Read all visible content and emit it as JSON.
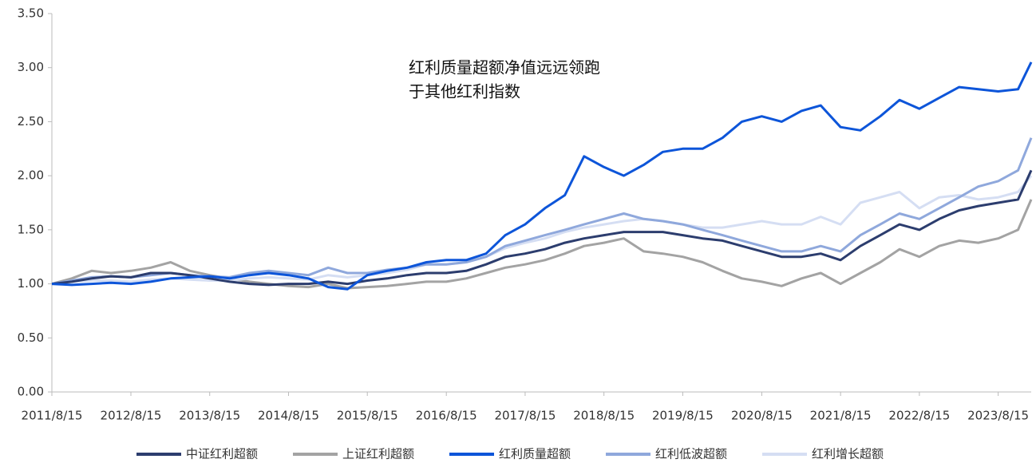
{
  "chart_data": {
    "type": "line",
    "annotation": [
      "红利质量超额净值远远领跑",
      "于其他红利指数"
    ],
    "x": [
      "2011/8/15",
      "2011/11/15",
      "2012/2/15",
      "2012/5/15",
      "2012/8/15",
      "2012/11/15",
      "2013/2/15",
      "2013/5/15",
      "2013/8/15",
      "2013/11/15",
      "2014/2/15",
      "2014/5/15",
      "2014/8/15",
      "2014/11/15",
      "2015/2/15",
      "2015/5/15",
      "2015/8/15",
      "2015/11/15",
      "2016/2/15",
      "2016/5/15",
      "2016/8/15",
      "2016/11/15",
      "2017/2/15",
      "2017/5/15",
      "2017/8/15",
      "2017/11/15",
      "2018/2/15",
      "2018/5/15",
      "2018/8/15",
      "2018/11/15",
      "2019/2/15",
      "2019/5/15",
      "2019/8/15",
      "2019/11/15",
      "2020/2/15",
      "2020/5/15",
      "2020/8/15",
      "2020/11/15",
      "2021/2/15",
      "2021/5/15",
      "2021/8/15",
      "2021/11/15",
      "2022/2/15",
      "2022/5/15",
      "2022/8/15",
      "2022/11/15",
      "2023/2/15",
      "2023/5/15",
      "2023/8/15",
      "2023/11/15",
      "2024/1/15"
    ],
    "xlim": [
      "2011/8/15",
      "2024/1/15"
    ],
    "xticks": [
      "2011/8/15",
      "2012/8/15",
      "2013/8/15",
      "2014/8/15",
      "2015/8/15",
      "2016/8/15",
      "2017/8/15",
      "2018/8/15",
      "2019/8/15",
      "2020/8/15",
      "2021/8/15",
      "2022/8/15",
      "2023/8/15"
    ],
    "ylim": [
      0,
      3.5
    ],
    "yticks": [
      {
        "value": 0,
        "label": "0.00"
      },
      {
        "value": 0.5,
        "label": "0.50"
      },
      {
        "value": 1,
        "label": "1.00"
      },
      {
        "value": 1.5,
        "label": "1.50"
      },
      {
        "value": 2,
        "label": "2.00"
      },
      {
        "value": 2.5,
        "label": "2.50"
      },
      {
        "value": 3,
        "label": "3.00"
      },
      {
        "value": 3.5,
        "label": "3.50"
      }
    ],
    "legend": "bottom",
    "series": [
      {
        "name": "中证红利超额",
        "color": "#2c3d6e",
        "values": [
          1.0,
          1.02,
          1.05,
          1.07,
          1.06,
          1.1,
          1.1,
          1.08,
          1.05,
          1.02,
          1.0,
          0.99,
          1.0,
          1.0,
          1.02,
          1.0,
          1.03,
          1.05,
          1.08,
          1.1,
          1.1,
          1.12,
          1.18,
          1.25,
          1.28,
          1.32,
          1.38,
          1.42,
          1.45,
          1.48,
          1.48,
          1.48,
          1.45,
          1.42,
          1.4,
          1.35,
          1.3,
          1.25,
          1.25,
          1.28,
          1.22,
          1.35,
          1.45,
          1.55,
          1.5,
          1.6,
          1.68,
          1.72,
          1.75,
          1.78,
          2.05
        ]
      },
      {
        "name": "上证红利超额",
        "color": "#a3a3a3",
        "values": [
          1.0,
          1.05,
          1.12,
          1.1,
          1.12,
          1.15,
          1.2,
          1.12,
          1.08,
          1.05,
          1.02,
          1.0,
          0.98,
          0.97,
          1.0,
          0.96,
          0.97,
          0.98,
          1.0,
          1.02,
          1.02,
          1.05,
          1.1,
          1.15,
          1.18,
          1.22,
          1.28,
          1.35,
          1.38,
          1.42,
          1.3,
          1.28,
          1.25,
          1.2,
          1.12,
          1.05,
          1.02,
          0.98,
          1.05,
          1.1,
          1.0,
          1.1,
          1.2,
          1.32,
          1.25,
          1.35,
          1.4,
          1.38,
          1.42,
          1.5,
          1.78
        ]
      },
      {
        "name": "红利质量超额",
        "color": "#0d55d9",
        "values": [
          1.0,
          0.99,
          1.0,
          1.01,
          1.0,
          1.02,
          1.05,
          1.06,
          1.07,
          1.05,
          1.08,
          1.1,
          1.08,
          1.05,
          0.97,
          0.95,
          1.08,
          1.12,
          1.15,
          1.2,
          1.22,
          1.22,
          1.28,
          1.45,
          1.55,
          1.7,
          1.82,
          2.18,
          2.08,
          2.0,
          2.1,
          2.22,
          2.25,
          2.25,
          2.35,
          2.5,
          2.55,
          2.5,
          2.6,
          2.65,
          2.45,
          2.42,
          2.55,
          2.7,
          2.62,
          2.72,
          2.82,
          2.8,
          2.78,
          2.8,
          3.05
        ]
      },
      {
        "name": "红利低波超额",
        "color": "#8fa8dc",
        "values": [
          1.0,
          1.03,
          1.06,
          1.07,
          1.06,
          1.08,
          1.1,
          1.08,
          1.07,
          1.06,
          1.1,
          1.12,
          1.1,
          1.08,
          1.15,
          1.1,
          1.1,
          1.13,
          1.15,
          1.18,
          1.18,
          1.2,
          1.25,
          1.35,
          1.4,
          1.45,
          1.5,
          1.55,
          1.6,
          1.65,
          1.6,
          1.58,
          1.55,
          1.5,
          1.45,
          1.4,
          1.35,
          1.3,
          1.3,
          1.35,
          1.3,
          1.45,
          1.55,
          1.65,
          1.6,
          1.7,
          1.8,
          1.9,
          1.95,
          2.05,
          2.35
        ]
      },
      {
        "name": "红利增长超额",
        "color": "#d5def3",
        "values": [
          1.0,
          1.02,
          1.03,
          1.03,
          1.02,
          1.04,
          1.05,
          1.04,
          1.03,
          1.03,
          1.05,
          1.06,
          1.05,
          1.04,
          1.08,
          1.06,
          1.08,
          1.1,
          1.13,
          1.18,
          1.18,
          1.2,
          1.25,
          1.33,
          1.38,
          1.42,
          1.48,
          1.52,
          1.55,
          1.58,
          1.6,
          1.58,
          1.55,
          1.52,
          1.52,
          1.55,
          1.58,
          1.55,
          1.55,
          1.62,
          1.55,
          1.75,
          1.8,
          1.85,
          1.7,
          1.8,
          1.82,
          1.78,
          1.8,
          1.85,
          2.0
        ]
      }
    ]
  }
}
